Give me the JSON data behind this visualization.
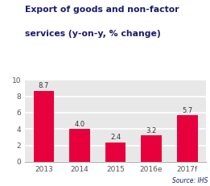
{
  "categories": [
    "2013",
    "2014",
    "2015",
    "2016e",
    "2017f"
  ],
  "values": [
    8.7,
    4.0,
    2.4,
    3.2,
    5.7
  ],
  "bar_color": "#e8003d",
  "title_line1": "Export of goods and non-factor",
  "title_line2": "services (y-on-y, % change)",
  "source_text": "Source: IHS",
  "ylim": [
    0,
    10
  ],
  "yticks": [
    0,
    2,
    4,
    6,
    8,
    10
  ],
  "background_color": "#ffffff",
  "plot_bg_color": "#e8e8e8",
  "title_color": "#1a1a6e",
  "label_color": "#333333",
  "source_color": "#1a1a6e",
  "tick_color": "#555555",
  "title_fontsize": 7.8,
  "label_fontsize": 6.0,
  "source_fontsize": 5.5,
  "tick_fontsize": 6.5
}
